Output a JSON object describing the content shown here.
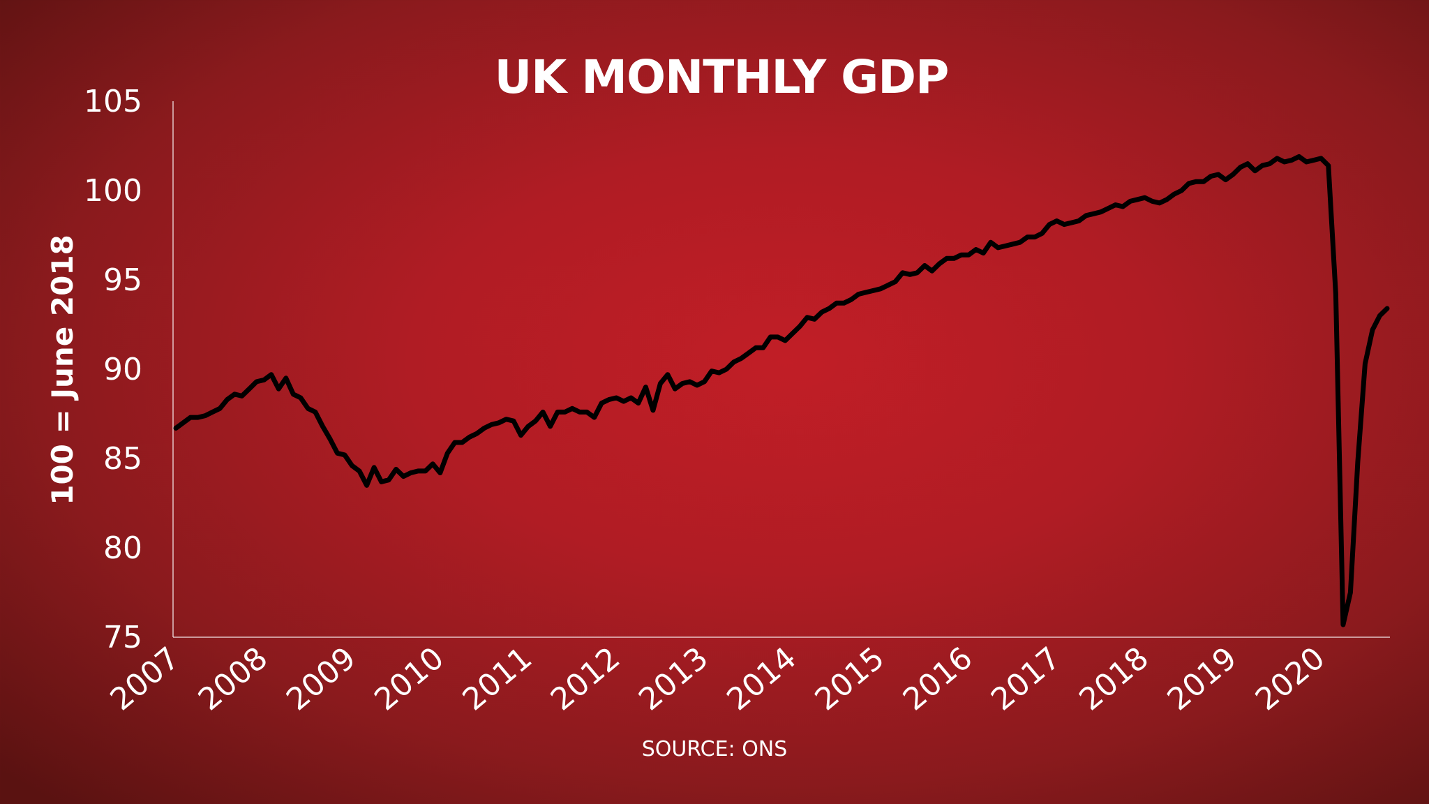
{
  "chart_data": {
    "type": "line",
    "title": "UK MONTHLY GDP",
    "ylabel": "100 = June 2018",
    "xlabel": "",
    "source": "SOURCE: ONS",
    "ylim": [
      75,
      105
    ],
    "yticks": [
      105,
      100,
      95,
      90,
      85,
      80,
      75
    ],
    "xticks": [
      "2007",
      "2008",
      "2009",
      "2010",
      "2011",
      "2012",
      "2013",
      "2014",
      "2015",
      "2016",
      "2017",
      "2018",
      "2019",
      "2020"
    ],
    "x_start": "2007-01",
    "x_end": "2020-10",
    "grid": false,
    "legend": "none",
    "line_color": "#000000",
    "series": [
      {
        "values": [
          86.7,
          87.0,
          87.3,
          87.3,
          87.4,
          87.6,
          87.8,
          88.3,
          88.6,
          88.5,
          88.9,
          89.3,
          89.4,
          89.7,
          88.9,
          89.5,
          88.6,
          88.4,
          87.8,
          87.6,
          86.8,
          86.1,
          85.3,
          85.2,
          84.6,
          84.3,
          83.5,
          84.5,
          83.7,
          83.8,
          84.4,
          84.0,
          84.2,
          84.3,
          84.3,
          84.7,
          84.2,
          85.3,
          85.9,
          85.9,
          86.2,
          86.4,
          86.7,
          86.9,
          87.0,
          87.2,
          87.1,
          86.3,
          86.8,
          87.1,
          87.6,
          86.8,
          87.6,
          87.6,
          87.8,
          87.6,
          87.6,
          87.3,
          88.1,
          88.3,
          88.4,
          88.2,
          88.4,
          88.1,
          89.0,
          87.7,
          89.2,
          89.7,
          88.9,
          89.2,
          89.3,
          89.1,
          89.3,
          89.9,
          89.8,
          90.0,
          90.4,
          90.6,
          90.9,
          91.2,
          91.2,
          91.8,
          91.8,
          91.6,
          92.0,
          92.4,
          92.9,
          92.8,
          93.2,
          93.4,
          93.7,
          93.7,
          93.9,
          94.2,
          94.3,
          94.4,
          94.5,
          94.7,
          94.9,
          95.4,
          95.3,
          95.4,
          95.8,
          95.5,
          95.9,
          96.2,
          96.2,
          96.4,
          96.4,
          96.7,
          96.5,
          97.1,
          96.8,
          96.9,
          97.0,
          97.1,
          97.4,
          97.4,
          97.6,
          98.1,
          98.3,
          98.1,
          98.2,
          98.3,
          98.6,
          98.7,
          98.8,
          99.0,
          99.2,
          99.1,
          99.4,
          99.5,
          99.6,
          99.4,
          99.3,
          99.5,
          99.8,
          100.0,
          100.4,
          100.5,
          100.5,
          100.8,
          100.9,
          100.6,
          100.9,
          101.3,
          101.5,
          101.1,
          101.4,
          101.5,
          101.8,
          101.6,
          101.7,
          101.9,
          101.6,
          101.7,
          101.8,
          101.4,
          94.2,
          75.7,
          77.5,
          84.8,
          90.3,
          92.2,
          93.0,
          93.4
        ]
      }
    ]
  }
}
